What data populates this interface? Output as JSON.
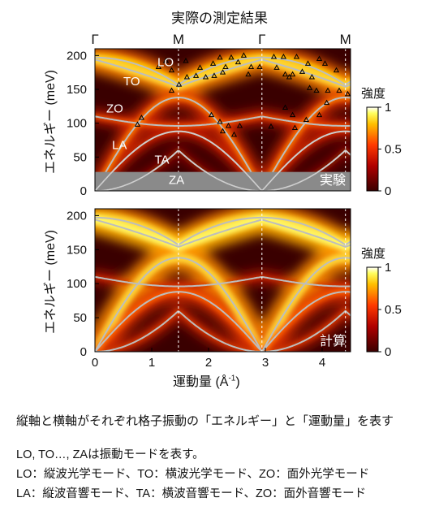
{
  "title": "実際の測定結果",
  "description": "縦軸と横軸がそれぞれ格子振動の「エネルギー」と「運動量」を表す",
  "notes": [
    "LO, TO…, ZAは振動モードを表す。",
    "LO：縦波光学モード、TO：横波光学モード、ZO：面外光学モード",
    "LA：縦波音響モード、TA：横波音響モード、ZO：面外音響モード"
  ],
  "colors": {
    "low": "#3a0000",
    "mid": "#d81a00",
    "high": "#ffff40",
    "top": "#ffffff",
    "dispersion": "#bdbdbd",
    "points": "#000000"
  },
  "chart_data": [
    {
      "type": "heatmap",
      "panel_label": "実験",
      "ylabel": "エネルギー (meV)",
      "xlim": [
        0,
        4.5
      ],
      "ylim": [
        0,
        210
      ],
      "yticks": [
        0,
        50,
        100,
        150,
        200
      ],
      "high_symmetry_points": [
        {
          "label": "Γ",
          "x": 0
        },
        {
          "label": "M",
          "x": 1.47
        },
        {
          "label": "Γ",
          "x": 2.94
        },
        {
          "label": "M",
          "x": 4.41
        }
      ],
      "mode_labels": [
        {
          "label": "LO",
          "x": 1.1,
          "y": 190
        },
        {
          "label": "TO",
          "x": 0.5,
          "y": 162
        },
        {
          "label": "ZO",
          "x": 0.2,
          "y": 122
        },
        {
          "label": "LA",
          "x": 0.3,
          "y": 68
        },
        {
          "label": "TA",
          "x": 1.05,
          "y": 46
        },
        {
          "label": "ZA",
          "x": 1.3,
          "y": 16
        }
      ],
      "measured_points": [
        [
          0.75,
          98
        ],
        [
          0.82,
          108
        ],
        [
          1.12,
          183
        ],
        [
          1.25,
          192
        ],
        [
          1.35,
          178
        ],
        [
          1.6,
          192
        ],
        [
          1.62,
          168
        ],
        [
          1.85,
          182
        ],
        [
          2.08,
          188
        ],
        [
          2.2,
          197
        ],
        [
          2.3,
          183
        ],
        [
          2.4,
          197
        ],
        [
          2.52,
          190
        ],
        [
          2.62,
          200
        ],
        [
          2.7,
          172
        ],
        [
          2.75,
          183
        ],
        [
          2.9,
          183
        ],
        [
          1.48,
          157
        ],
        [
          1.78,
          170
        ],
        [
          1.95,
          168
        ],
        [
          2.1,
          170
        ],
        [
          2.25,
          175
        ],
        [
          1.35,
          148
        ],
        [
          2.05,
          112
        ],
        [
          2.2,
          102
        ],
        [
          2.25,
          88
        ],
        [
          2.35,
          96
        ],
        [
          2.45,
          83
        ],
        [
          2.55,
          96
        ],
        [
          3.15,
          198
        ],
        [
          3.2,
          182
        ],
        [
          3.32,
          198
        ],
        [
          3.35,
          172
        ],
        [
          3.48,
          172
        ],
        [
          3.55,
          198
        ],
        [
          3.65,
          176
        ],
        [
          3.75,
          188
        ],
        [
          3.82,
          168
        ],
        [
          3.95,
          195
        ],
        [
          4.05,
          188
        ],
        [
          3.9,
          148
        ],
        [
          4.1,
          148
        ],
        [
          4.25,
          178
        ],
        [
          4.3,
          148
        ],
        [
          4.45,
          143
        ],
        [
          3.42,
          168
        ],
        [
          3.78,
          152
        ],
        [
          4.08,
          130
        ],
        [
          3.35,
          123
        ],
        [
          3.48,
          112
        ],
        [
          3.72,
          105
        ],
        [
          3.95,
          112
        ],
        [
          3.52,
          93
        ],
        [
          3.1,
          95
        ]
      ],
      "colorbar": {
        "label": "強度",
        "ticks": [
          0,
          0.5,
          1
        ]
      }
    },
    {
      "type": "heatmap",
      "panel_label": "計算",
      "ylabel": "エネルギー (meV)",
      "xlabel": "運動量 (Å",
      "xlabel_sup": "-1",
      "xlabel_end": ")",
      "xlim": [
        0,
        4.5
      ],
      "xticks": [
        0,
        1,
        2,
        3,
        4
      ],
      "ylim": [
        0,
        210
      ],
      "yticks": [
        0,
        50,
        100,
        150,
        200
      ],
      "colorbar": {
        "label": "強度",
        "ticks": [
          0,
          0.5,
          1
        ]
      }
    }
  ]
}
